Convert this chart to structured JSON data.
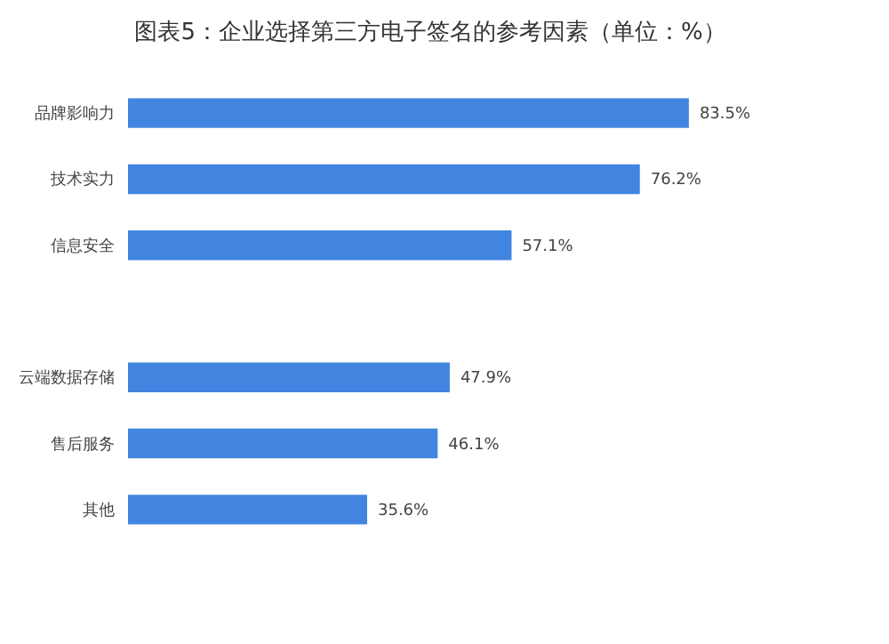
{
  "chart_data": {
    "type": "bar",
    "orientation": "horizontal",
    "title": "图表5：企业选择第三方电子签名的参考因素（单位：%）",
    "categories": [
      "品牌影响力",
      "技术实力",
      "信息安全",
      null,
      "云端数据存储",
      "售后服务",
      "其他"
    ],
    "values": [
      83.5,
      76.2,
      57.1,
      null,
      47.9,
      46.1,
      35.6
    ],
    "value_labels": [
      "83.5%",
      "76.2%",
      "57.1%",
      null,
      "47.9%",
      "46.1%",
      "35.6%"
    ],
    "color": "#4285e0",
    "grid": false
  }
}
